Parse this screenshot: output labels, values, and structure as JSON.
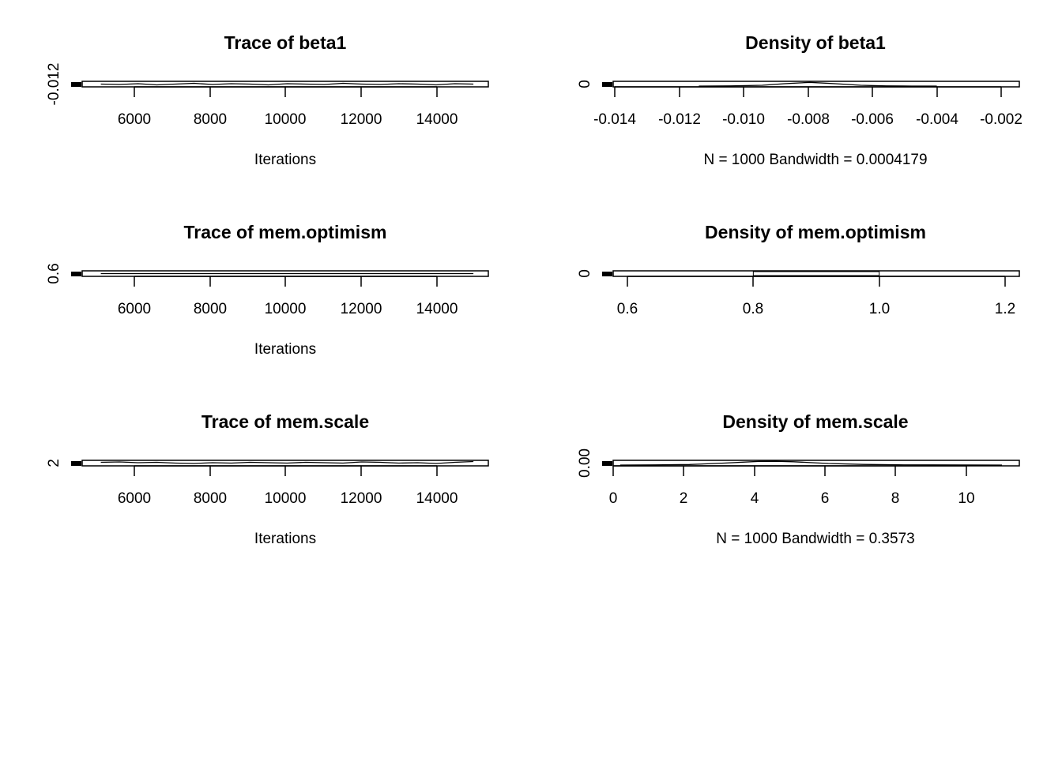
{
  "chart_data": [
    {
      "type": "line",
      "title": "Trace of beta1",
      "xlabel": "Iterations",
      "ylabel": "",
      "x_ticks": [
        "6000",
        "8000",
        "10000",
        "12000",
        "14000"
      ],
      "x_tick_values": [
        6000,
        8000,
        10000,
        12000,
        14000
      ],
      "y_ticks": [
        "-0.012"
      ],
      "y_tick_values": [
        -0.012
      ],
      "xlim": [
        4500,
        15400
      ],
      "ylim": [
        -0.0125,
        -0.0115
      ],
      "series": [
        {
          "x": [
            5000,
            5500,
            6000,
            6500,
            7000,
            7500,
            8000,
            8500,
            9000,
            9500,
            10000,
            10500,
            11000,
            11500,
            12000,
            12500,
            13000,
            13500,
            14000,
            14500,
            15000
          ],
          "values": [
            -0.012,
            -0.0121,
            -0.0119,
            -0.0122,
            -0.012,
            -0.0118,
            -0.0121,
            -0.0119,
            -0.012,
            -0.0122,
            -0.0119,
            -0.012,
            -0.0121,
            -0.0118,
            -0.012,
            -0.0121,
            -0.0119,
            -0.012,
            -0.0122,
            -0.0119,
            -0.012
          ]
        }
      ]
    },
    {
      "type": "line",
      "title": "Density of beta1",
      "xlabel": "N = 1000   Bandwidth = 0.0004179",
      "ylabel": "",
      "x_ticks": [
        "-0.014",
        "-0.012",
        "-0.010",
        "-0.008",
        "-0.006",
        "-0.004",
        "-0.002"
      ],
      "x_tick_values": [
        -0.014,
        -0.012,
        -0.01,
        -0.008,
        -0.006,
        -0.004,
        -0.002
      ],
      "y_ticks": [
        "0"
      ],
      "y_tick_values": [
        0
      ],
      "xlim": [
        -0.0142,
        -0.0014
      ],
      "ylim": [
        0,
        1000
      ],
      "series": [
        {
          "x": [
            -0.0115,
            -0.0105,
            -0.0095,
            -0.0088,
            -0.008,
            -0.0072,
            -0.0064,
            -0.0056,
            -0.0048,
            -0.004
          ],
          "values": [
            0,
            40,
            200,
            600,
            950,
            600,
            200,
            40,
            5,
            0
          ]
        }
      ]
    },
    {
      "type": "line",
      "title": "Trace of mem.optimism",
      "xlabel": "Iterations",
      "ylabel": "",
      "x_ticks": [
        "6000",
        "8000",
        "10000",
        "12000",
        "14000"
      ],
      "x_tick_values": [
        6000,
        8000,
        10000,
        12000,
        14000
      ],
      "y_ticks": [
        "0.6"
      ],
      "y_tick_values": [
        0.6
      ],
      "xlim": [
        4500,
        15400
      ],
      "ylim": [
        0.55,
        0.65
      ],
      "series": [
        {
          "x": [
            5000,
            15000
          ],
          "values": [
            0.6,
            0.6
          ]
        }
      ]
    },
    {
      "type": "bar",
      "title": "Density of mem.optimism",
      "xlabel": "",
      "ylabel": "",
      "x_ticks": [
        "0.6",
        "0.8",
        "1.0",
        "1.2"
      ],
      "x_tick_values": [
        0.6,
        0.8,
        1.0,
        1.2
      ],
      "y_ticks": [
        "0"
      ],
      "y_tick_values": [
        0
      ],
      "xlim": [
        0.6,
        1.2
      ],
      "ylim": [
        0,
        1
      ],
      "series": [
        {
          "x": [
            0.8,
            1.0
          ],
          "values": [
            1,
            1
          ]
        }
      ]
    },
    {
      "type": "line",
      "title": "Trace of mem.scale",
      "xlabel": "Iterations",
      "ylabel": "",
      "x_ticks": [
        "6000",
        "8000",
        "10000",
        "12000",
        "14000"
      ],
      "x_tick_values": [
        6000,
        8000,
        10000,
        12000,
        14000
      ],
      "y_ticks": [
        "2"
      ],
      "y_tick_values": [
        2
      ],
      "xlim": [
        4500,
        15400
      ],
      "ylim": [
        1.95,
        2.05
      ],
      "series": [
        {
          "x": [
            5000,
            5500,
            6000,
            6500,
            7000,
            7500,
            8000,
            8500,
            9000,
            9500,
            10000,
            10500,
            11000,
            11500,
            12000,
            12500,
            13000,
            13500,
            14000,
            14500,
            15000
          ],
          "values": [
            2.02,
            2.03,
            2.01,
            2.02,
            2.0,
            1.99,
            2.01,
            2.0,
            2.02,
            2.01,
            2.0,
            2.02,
            2.01,
            2.0,
            2.03,
            2.02,
            2.0,
            2.01,
            1.99,
            2.02,
            2.04
          ]
        }
      ]
    },
    {
      "type": "line",
      "title": "Density of mem.scale",
      "xlabel": "N = 1000   Bandwidth = 0.3573",
      "ylabel": "",
      "x_ticks": [
        "0",
        "2",
        "4",
        "6",
        "8",
        "10"
      ],
      "x_tick_values": [
        0,
        2,
        4,
        6,
        8,
        10
      ],
      "y_ticks": [
        "0.00"
      ],
      "y_tick_values": [
        0
      ],
      "xlim": [
        -0.2,
        11.5
      ],
      "ylim": [
        0,
        0.3
      ],
      "series": [
        {
          "x": [
            0,
            1,
            2,
            3,
            4,
            4.5,
            5,
            6,
            7,
            8,
            9,
            10,
            11
          ],
          "values": [
            0,
            0.01,
            0.04,
            0.15,
            0.28,
            0.29,
            0.25,
            0.12,
            0.05,
            0.02,
            0.01,
            0.005,
            0
          ]
        }
      ]
    }
  ]
}
